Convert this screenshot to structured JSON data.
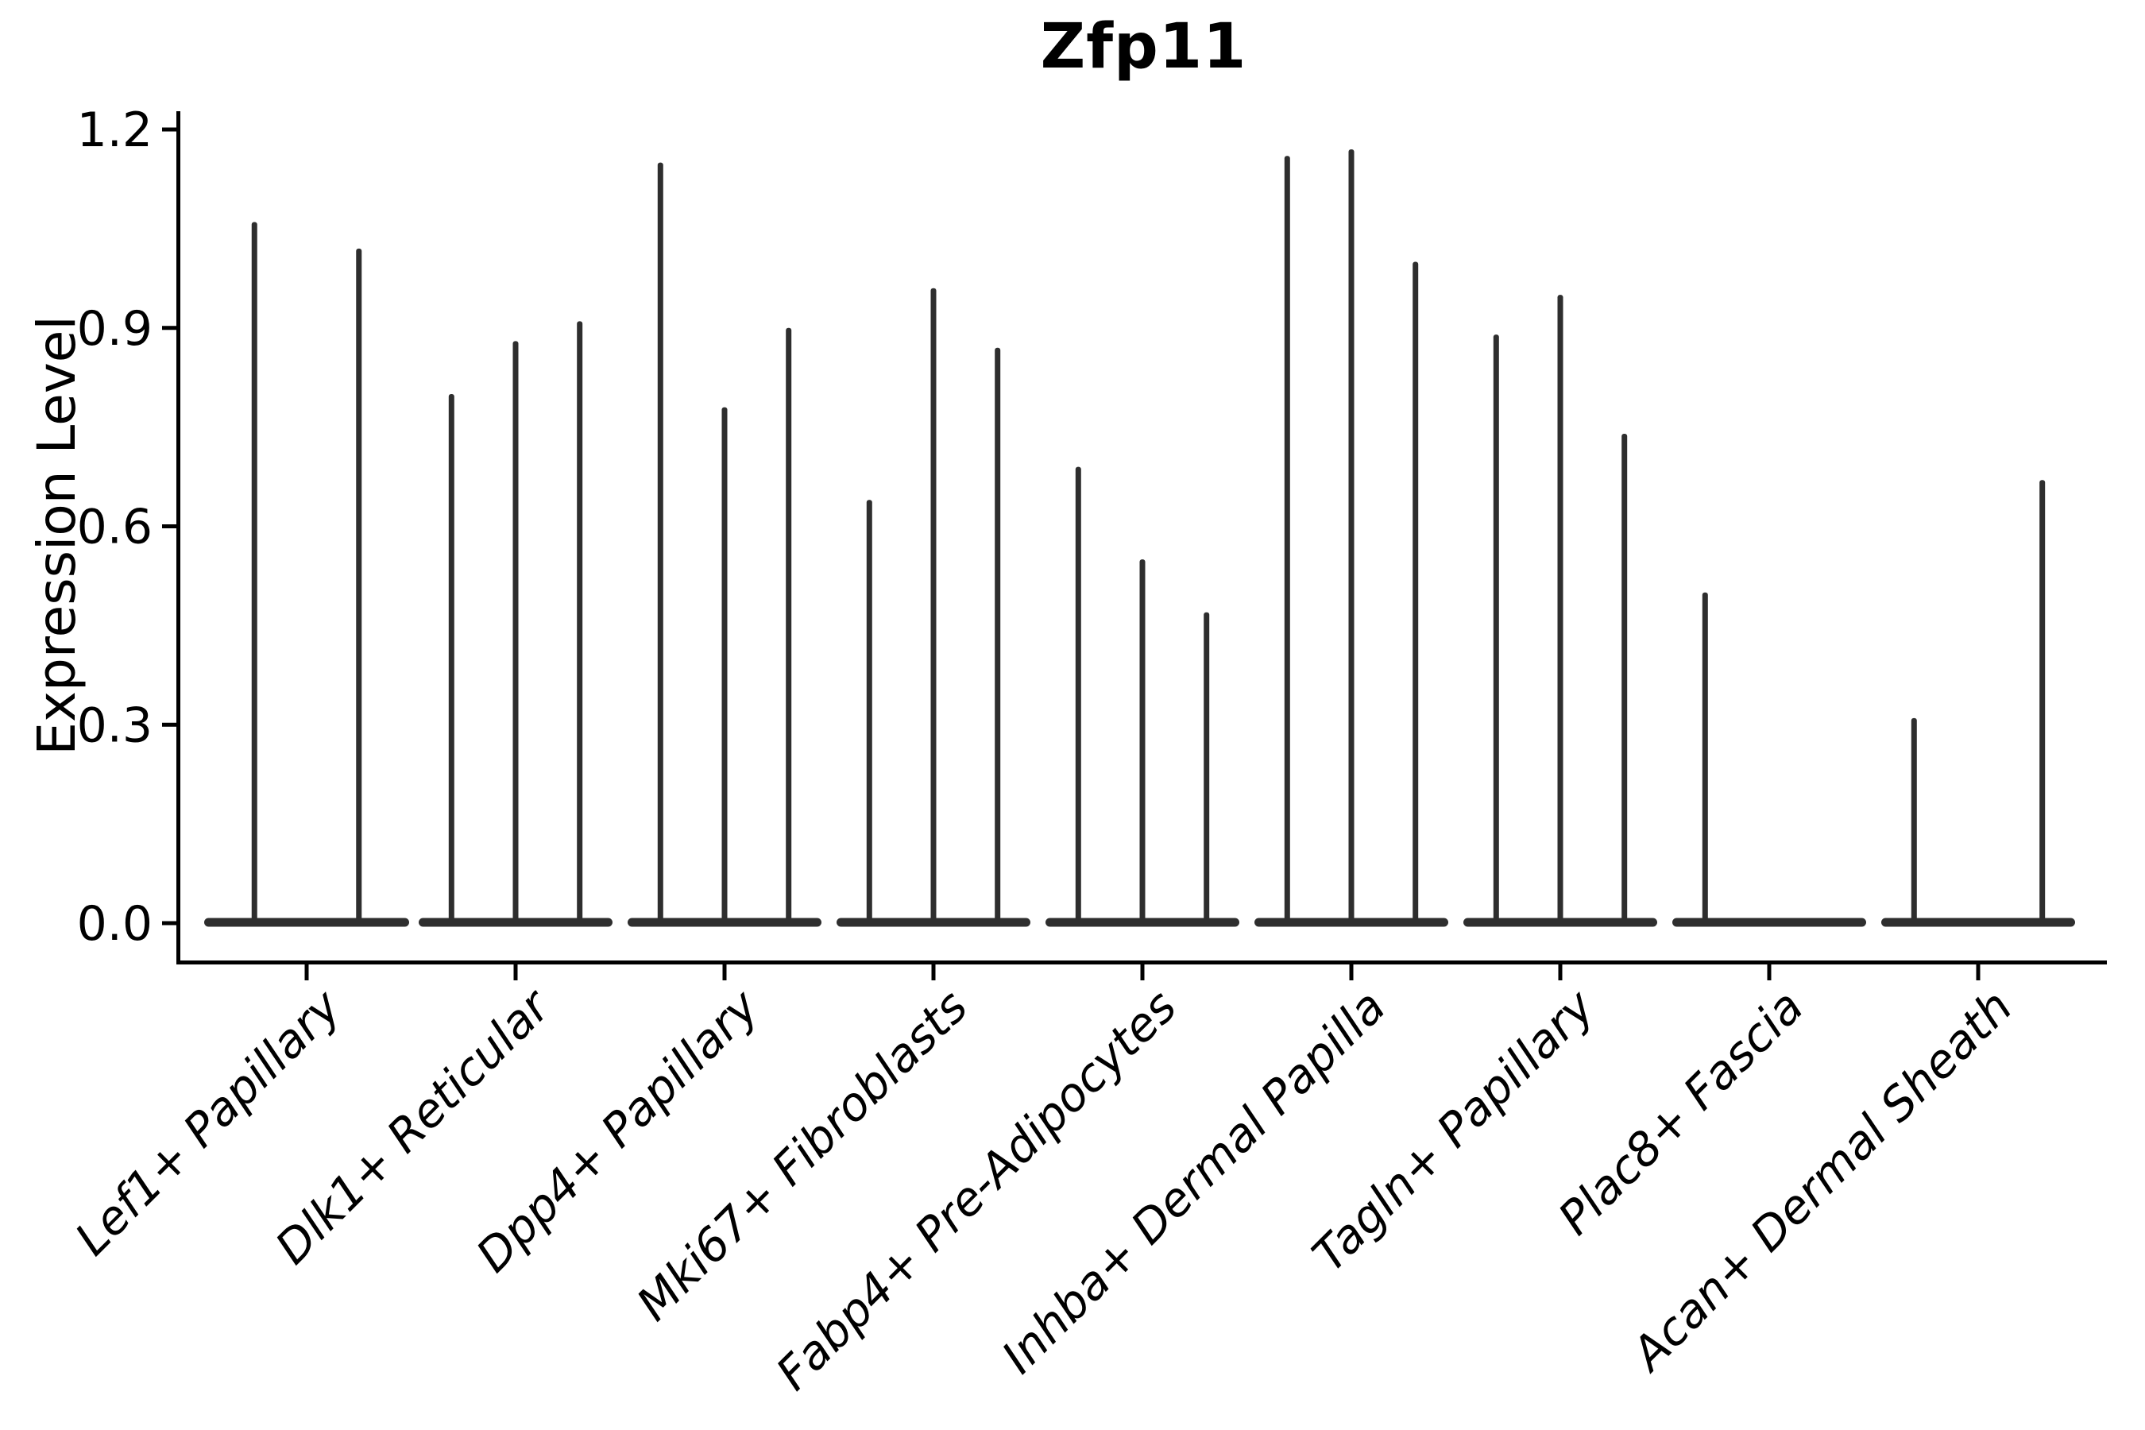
{
  "chart_data": {
    "type": "violin",
    "title": "Zfp11",
    "ylabel": "Expression Level",
    "xlabel": "",
    "ylim": [
      0.0,
      1.2
    ],
    "yticks": [
      0.0,
      0.3,
      0.6,
      0.9,
      1.2
    ],
    "ytick_labels": [
      "0.0",
      "0.3",
      "0.6",
      "0.9",
      "1.2"
    ],
    "grid": false,
    "legend": "none",
    "xtick_label_rotation_deg": 45,
    "categories": [
      "Lef1+ Papillary",
      "Dlk1+ Reticular",
      "Dpp4+ Papillary",
      "Mki67+ Fibroblasts",
      "Fabp4+ Pre-Adipocytes",
      "Inhba+ Dermal Papilla",
      "Tagln+ Papillary",
      "Plac8+ Fascia",
      "Acan+ Dermal Sheath"
    ],
    "groups": [
      {
        "label": "Lef1+ Papillary",
        "violin_maxima": [
          1.06,
          1.02
        ]
      },
      {
        "label": "Dlk1+ Reticular",
        "violin_maxima": [
          0.8,
          0.88,
          0.91
        ]
      },
      {
        "label": "Dpp4+ Papillary",
        "violin_maxima": [
          1.15,
          0.78,
          0.9
        ]
      },
      {
        "label": "Mki67+ Fibroblasts",
        "violin_maxima": [
          0.64,
          0.96,
          0.87
        ]
      },
      {
        "label": "Fabp4+ Pre-Adipocytes",
        "violin_maxima": [
          0.69,
          0.55,
          0.47
        ]
      },
      {
        "label": "Inhba+ Dermal Papilla",
        "violin_maxima": [
          1.16,
          1.17,
          1.0
        ]
      },
      {
        "label": "Tagln+ Papillary",
        "violin_maxima": [
          0.89,
          0.95,
          0.74
        ]
      },
      {
        "label": "Plac8+ Fascia",
        "violin_maxima": [
          0.5,
          0,
          0
        ]
      },
      {
        "label": "Acan+ Dermal Sheath",
        "violin_maxima": [
          0.31,
          0,
          0.67
        ]
      }
    ],
    "colors": {
      "axis": "#000000",
      "violin": "#2e2e2e",
      "background": "#ffffff",
      "text": "#000000"
    }
  }
}
